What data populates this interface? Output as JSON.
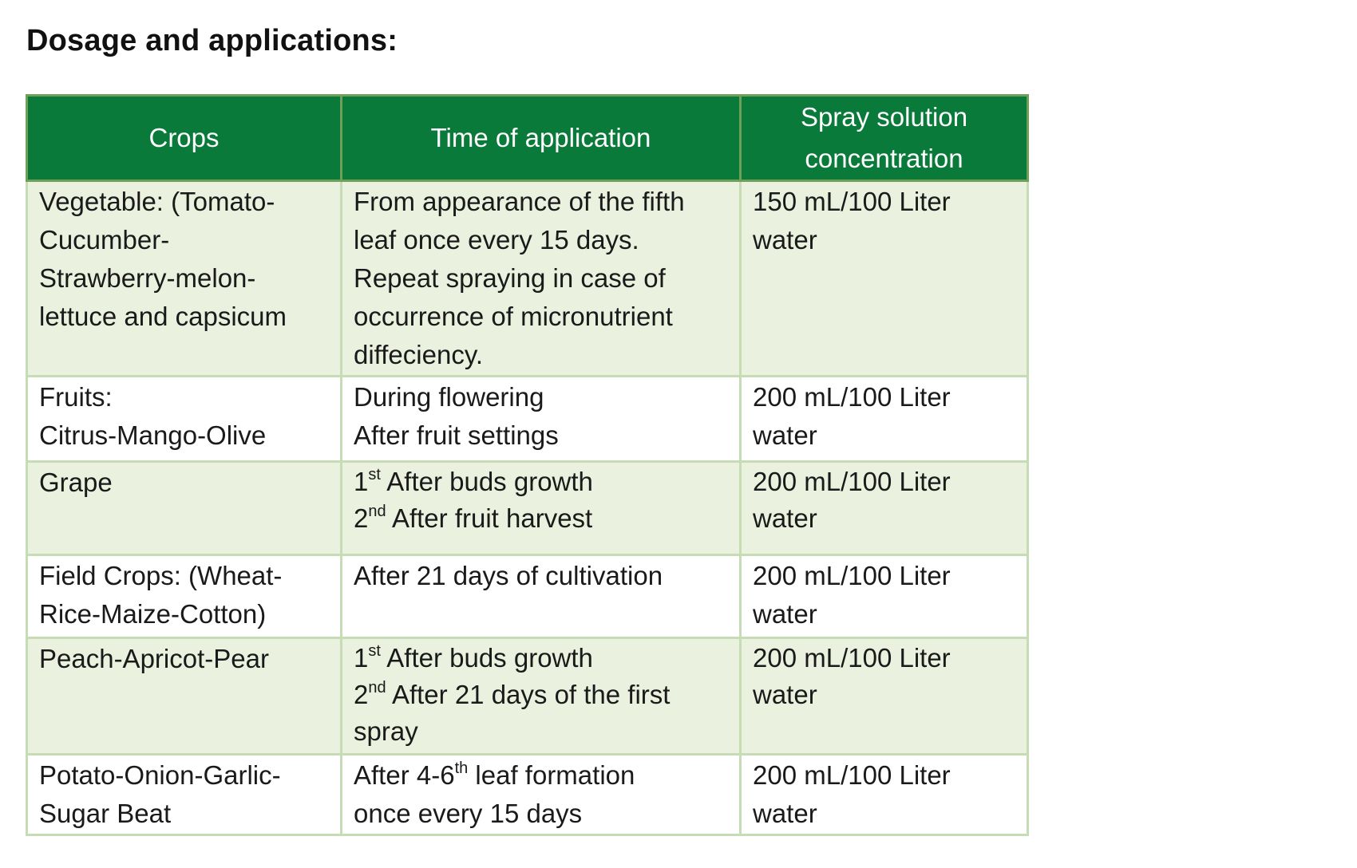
{
  "document": {
    "title": "Dosage and applications:"
  },
  "table": {
    "headers": {
      "crops": "Crops",
      "time": "Time of application",
      "concentration_line1": "Spray solution",
      "concentration_line2": "concentration"
    },
    "rows": [
      {
        "crop": [
          "Vegetable: (Tomato-",
          "Cucumber-",
          "Strawberry-melon-",
          "lettuce and capsicum"
        ],
        "time": [
          "From appearance of the fifth",
          "leaf once every 15 days.",
          "Repeat spraying in case of",
          "occurrence of micronutrient",
          "diffeciency."
        ],
        "concentration": [
          "150 mL/100 Liter",
          "water"
        ]
      },
      {
        "crop": [
          "Fruits:",
          "Citrus-Mango-Olive"
        ],
        "time": [
          "During flowering",
          "After fruit settings"
        ],
        "concentration": [
          "200 mL/100 Liter",
          "water"
        ]
      },
      {
        "crop": [
          "Grape"
        ],
        "time": [
          {
            "num": "1",
            "sup": "st",
            "text": " After buds growth"
          },
          {
            "num": "2",
            "sup": "nd",
            "text": " After fruit harvest"
          }
        ],
        "concentration": [
          "200 mL/100 Liter",
          "water"
        ]
      },
      {
        "crop": [
          "Field Crops:  (Wheat-",
          "Rice-Maize-Cotton)"
        ],
        "time": [
          "After 21 days of cultivation"
        ],
        "concentration": [
          "200 mL/100 Liter",
          "water"
        ]
      },
      {
        "crop": [
          "Peach-Apricot-Pear"
        ],
        "time": [
          {
            "num": "1",
            "sup": "st",
            "text": " After buds growth"
          },
          {
            "num": "2",
            "sup": "nd",
            "text": " After 21 days of the first"
          },
          {
            "num": "",
            "sup": "",
            "text": "spray"
          }
        ],
        "concentration": [
          "200 mL/100 Liter",
          "water"
        ]
      },
      {
        "crop": [
          "Potato-Onion-Garlic-",
          "Sugar Beat"
        ],
        "time": [
          {
            "num": "After 4-6",
            "sup": "th",
            "text": " leaf formation"
          },
          {
            "num": "once every 15 days",
            "sup": "",
            "text": ""
          }
        ],
        "concentration": [
          "200 mL/100 Liter",
          "water"
        ]
      }
    ]
  }
}
